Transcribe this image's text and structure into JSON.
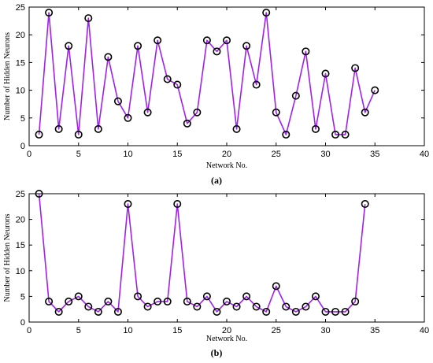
{
  "chart_data": [
    {
      "type": "line",
      "caption": "(a)",
      "xlabel": "Network No.",
      "ylabel": "Number of Hidden Neurons",
      "xlim": [
        0,
        40
      ],
      "ylim": [
        0,
        25
      ],
      "xticks": [
        0,
        5,
        10,
        15,
        20,
        25,
        30,
        35,
        40
      ],
      "yticks": [
        0,
        5,
        10,
        15,
        20,
        25
      ],
      "grid": false,
      "line_color": "#a020f0",
      "marker_color": "#000000",
      "x": [
        1,
        2,
        3,
        4,
        5,
        6,
        7,
        8,
        9,
        10,
        11,
        12,
        13,
        14,
        15,
        16,
        17,
        18,
        19,
        20,
        21,
        22,
        23,
        24,
        25,
        26,
        27,
        28,
        29,
        30,
        31,
        32,
        33,
        34,
        35
      ],
      "values": [
        2,
        24,
        3,
        18,
        2,
        23,
        3,
        16,
        8,
        5,
        18,
        6,
        19,
        12,
        11,
        4,
        6,
        19,
        17,
        19,
        3,
        18,
        11,
        24,
        6,
        2,
        9,
        17,
        3,
        13,
        2,
        2,
        14,
        6,
        10
      ]
    },
    {
      "type": "line",
      "caption": "(b)",
      "xlabel": "Network No.",
      "ylabel": "Number of Hidden Neurons",
      "xlim": [
        0,
        40
      ],
      "ylim": [
        0,
        25
      ],
      "xticks": [
        0,
        5,
        10,
        15,
        20,
        25,
        30,
        35,
        40
      ],
      "yticks": [
        0,
        5,
        10,
        15,
        20,
        25
      ],
      "grid": false,
      "line_color": "#a020f0",
      "marker_color": "#000000",
      "x": [
        1,
        2,
        3,
        4,
        5,
        6,
        7,
        8,
        9,
        10,
        11,
        12,
        13,
        14,
        15,
        16,
        17,
        18,
        19,
        20,
        21,
        22,
        23,
        24,
        25,
        26,
        27,
        28,
        29,
        30,
        31,
        32,
        33,
        34
      ],
      "values": [
        25,
        4,
        2,
        4,
        5,
        3,
        2,
        4,
        2,
        23,
        5,
        3,
        4,
        4,
        23,
        4,
        3,
        5,
        2,
        4,
        3,
        5,
        3,
        2,
        7,
        3,
        2,
        3,
        5,
        2,
        2,
        2,
        4,
        23
      ]
    }
  ]
}
